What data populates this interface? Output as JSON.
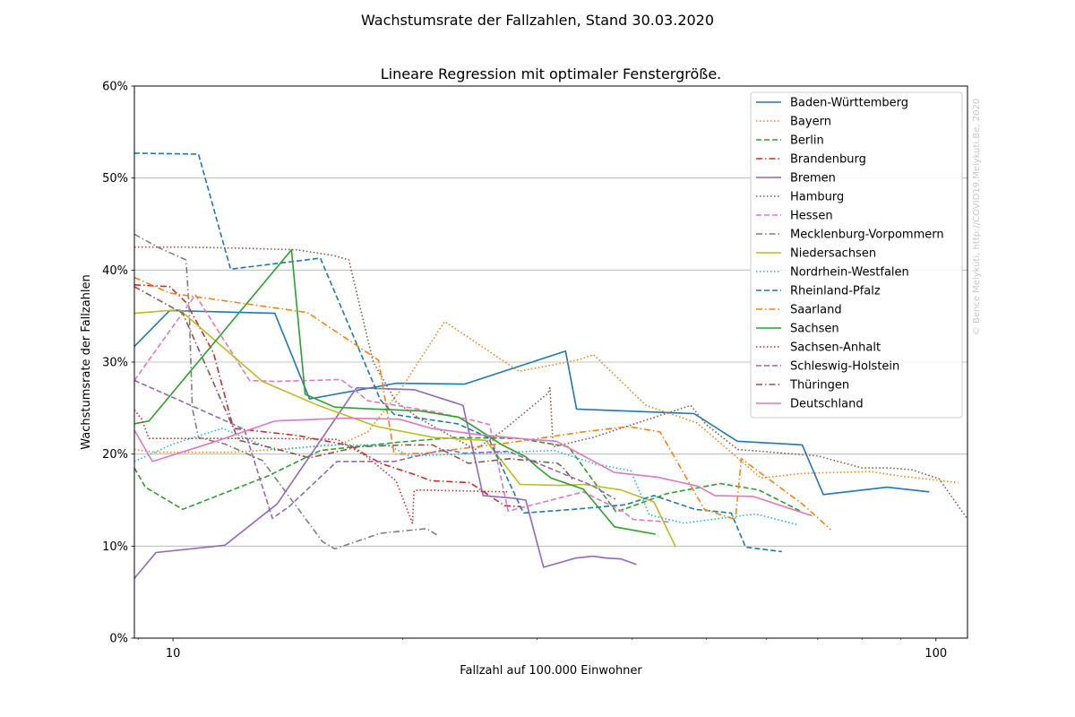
{
  "suptitle": "Wachstumsrate der Fallzahlen, Stand 30.03.2020",
  "watermark": "© Bence Melykúti, http://COVID19.Melykuti.Be, 2020",
  "chart_data": {
    "type": "line",
    "title": "Lineare Regression mit optimaler Fenstergröße.",
    "xlabel": "Fallzahl auf 100.000 Einwohner",
    "ylabel": "Wachstumsrate der Fallzahlen",
    "xscale": "log",
    "xlim": [
      8.9,
      110
    ],
    "ylim": [
      0,
      60
    ],
    "xticks": [
      {
        "value": 10,
        "label": "10"
      },
      {
        "value": 100,
        "label": "100"
      }
    ],
    "yticks": [
      {
        "value": 0,
        "label": "0%"
      },
      {
        "value": 10,
        "label": "10%"
      },
      {
        "value": 20,
        "label": "20%"
      },
      {
        "value": 30,
        "label": "30%"
      },
      {
        "value": 40,
        "label": "40%"
      },
      {
        "value": 50,
        "label": "50%"
      },
      {
        "value": 60,
        "label": "60%"
      }
    ],
    "grid": "y",
    "legend_position": "upper-right",
    "series": [
      {
        "name": "Baden-Württemberg",
        "color": "#1f77b4",
        "style": "solid",
        "x": [
          8.9,
          9.9,
          13.6,
          15.1,
          19.6,
          24.1,
          32.7,
          33.8,
          48.2,
          54.9,
          66.8,
          71.2,
          86.3,
          98.0
        ],
        "y": [
          31.7,
          35.6,
          35.3,
          26.0,
          27.7,
          27.6,
          31.2,
          24.9,
          24.4,
          21.4,
          21.0,
          15.6,
          16.4,
          15.9
        ]
      },
      {
        "name": "Bayern",
        "color": "#ff7f0e",
        "style": "dotted",
        "x": [
          8.9,
          9.5,
          12.0,
          16.5,
          18.0,
          19.8,
          22.7,
          28.4,
          33.8,
          35.6,
          41.7,
          48.6,
          59.0,
          66.8,
          82.2,
          90.0,
          107.0
        ],
        "y": [
          20.5,
          20.2,
          20.2,
          21.0,
          22.4,
          26.8,
          34.4,
          29.0,
          30.2,
          30.8,
          25.3,
          23.4,
          17.4,
          17.9,
          18.1,
          17.6,
          16.9
        ]
      },
      {
        "name": "Berlin",
        "color": "#2ca02c",
        "style": "dashed",
        "x": [
          8.9,
          9.2,
          10.3,
          13.3,
          15.6,
          19.8,
          23.4,
          28.4,
          33.0,
          38.1,
          44.4,
          52.2,
          58.6,
          66.8
        ],
        "y": [
          18.5,
          16.4,
          14.0,
          17.6,
          20.4,
          21.3,
          21.8,
          21.7,
          20.8,
          13.7,
          15.7,
          16.8,
          16.1,
          13.7
        ]
      },
      {
        "name": "Brandenburg",
        "color": "#d62728",
        "style": "dashdot",
        "x": [
          8.9,
          9.9,
          10.4,
          11.3,
          12.0,
          14.6,
          17.1,
          18.7,
          20.7,
          21.8,
          24.5,
          27.2,
          28.5
        ],
        "y": [
          38.4,
          38.2,
          36.5,
          31.0,
          22.8,
          22.0,
          20.9,
          19.0,
          17.8,
          17.1,
          16.9,
          14.4,
          14.3
        ]
      },
      {
        "name": "Bremen",
        "color": "#9467bd",
        "style": "solid",
        "x": [
          8.9,
          9.5,
          11.7,
          13.7,
          17.4,
          20.7,
          24.0,
          25.5,
          28.0,
          29.0,
          30.6,
          33.7,
          35.5,
          37.0,
          38.7,
          40.5
        ],
        "y": [
          6.5,
          9.3,
          10.1,
          14.6,
          27.2,
          27.0,
          25.3,
          15.5,
          15.2,
          15.0,
          7.7,
          8.7,
          8.9,
          8.7,
          8.6,
          8.0
        ]
      },
      {
        "name": "Hamburg",
        "color": "#8c564b",
        "style": "dotted",
        "x": [
          8.9,
          10.3,
          12.0,
          14.5,
          16.2,
          17.0,
          18.3,
          19.6,
          21.0,
          24.9,
          27.0,
          31.0,
          31.2,
          31.5,
          35.5,
          47.7,
          50.0,
          55.0,
          70.0,
          80.0,
          87.0,
          93.0,
          101.0,
          112.0
        ],
        "y": [
          42.5,
          42.5,
          42.4,
          42.2,
          41.6,
          41.1,
          30.0,
          25.7,
          23.9,
          20.5,
          22.5,
          26.6,
          27.2,
          20.8,
          21.8,
          25.3,
          23.2,
          20.5,
          19.8,
          18.5,
          18.5,
          18.3,
          17.3,
          12.0
        ]
      },
      {
        "name": "Hessen",
        "color": "#e377c2",
        "style": "dashed",
        "x": [
          8.9,
          10.7,
          12.6,
          13.6,
          16.6,
          17.3,
          18.0,
          22.0,
          24.9,
          26.0,
          27.5,
          34.5,
          39.0,
          40.1,
          45.0
        ],
        "y": [
          28.0,
          37.3,
          28.0,
          27.9,
          28.1,
          27.0,
          25.8,
          24.6,
          23.6,
          23.2,
          13.8,
          15.9,
          13.7,
          12.9,
          12.6
        ]
      },
      {
        "name": "Mecklenburg-Vorpommern",
        "color": "#7f7f7f",
        "style": "dashdot",
        "x": [
          8.9,
          9.6,
          10.4,
          10.5,
          10.6,
          10.8,
          11.7,
          13.1,
          15.7,
          16.3,
          18.7,
          21.5,
          22.2
        ],
        "y": [
          43.9,
          42.4,
          41.1,
          36.0,
          25.0,
          21.8,
          21.1,
          19.3,
          10.5,
          9.7,
          11.4,
          11.9,
          11.2
        ]
      },
      {
        "name": "Niedersachsen",
        "color": "#bcbd22",
        "style": "solid",
        "x": [
          8.9,
          10.2,
          13.1,
          15.5,
          18.5,
          22.0,
          25.7,
          28.5,
          32.2,
          34.6,
          38.7,
          42.7,
          45.6
        ],
        "y": [
          35.3,
          35.7,
          27.9,
          25.3,
          23.0,
          21.8,
          21.5,
          16.7,
          16.6,
          16.7,
          16.1,
          14.8,
          9.9
        ]
      },
      {
        "name": "Nordrhein-Westfalen",
        "color": "#17becf",
        "style": "dotted",
        "x": [
          8.9,
          10.0,
          11.6,
          13.6,
          15.9,
          19.1,
          20.4,
          25.9,
          31.6,
          35.9,
          39.8,
          42.1,
          46.7,
          58.0,
          66.0
        ],
        "y": [
          19.2,
          21.1,
          22.8,
          20.4,
          21.0,
          21.0,
          19.8,
          20.1,
          20.4,
          18.9,
          18.2,
          13.4,
          12.5,
          13.5,
          12.3
        ]
      },
      {
        "name": "Rheinland-Pfalz",
        "color": "#1f77b4",
        "style": "dashed",
        "x": [
          8.9,
          10.8,
          11.9,
          15.6,
          18.7,
          19.5,
          23.6,
          25.9,
          28.8,
          33.5,
          39.2,
          42.7,
          48.3,
          53.9,
          56.3,
          62.8
        ],
        "y": [
          52.7,
          52.6,
          40.1,
          41.3,
          25.9,
          24.3,
          23.3,
          21.8,
          13.6,
          14.0,
          14.5,
          15.5,
          14.0,
          13.6,
          9.9,
          9.4
        ]
      },
      {
        "name": "Saarland",
        "color": "#ff7f0e",
        "style": "dashdot",
        "x": [
          8.9,
          9.9,
          15.0,
          18.6,
          19.5,
          21.5,
          24.4,
          27.4,
          34.4,
          39.5,
          43.5,
          49.7,
          54.6,
          55.6,
          67.0,
          72.8
        ],
        "y": [
          39.2,
          37.5,
          35.4,
          30.2,
          20.0,
          20.1,
          20.7,
          21.2,
          22.4,
          23.0,
          22.4,
          14.0,
          12.9,
          19.5,
          14.5,
          11.8
        ]
      },
      {
        "name": "Sachsen",
        "color": "#2ca02c",
        "style": "solid",
        "x": [
          8.9,
          9.3,
          14.3,
          14.9,
          16.3,
          18.4,
          21.1,
          23.7,
          25.0,
          27.0,
          29.0,
          30.0,
          31.3,
          34.5,
          37.9,
          42.9
        ],
        "y": [
          23.3,
          23.6,
          42.2,
          26.5,
          25.1,
          24.9,
          24.7,
          24.0,
          22.8,
          21.0,
          19.7,
          18.6,
          17.4,
          16.2,
          12.1,
          11.3
        ]
      },
      {
        "name": "Sachsen-Anhalt",
        "color": "#d62728",
        "style": "dotted",
        "x": [
          8.9,
          9.1,
          9.3,
          10.5,
          13.5,
          16.4,
          17.9,
          19.6,
          20.6,
          20.7,
          21.0,
          27.6
        ],
        "y": [
          24.8,
          23.8,
          21.7,
          21.7,
          21.7,
          21.6,
          19.8,
          17.1,
          12.5,
          16.0,
          16.1,
          15.9
        ]
      },
      {
        "name": "Schleswig-Holstein",
        "color": "#9467bd",
        "style": "dashed",
        "x": [
          8.9,
          10.1,
          12.4,
          13.5,
          14.2,
          16.4,
          19.5,
          22.7,
          24.1,
          27.5,
          35.4,
          38.0
        ],
        "y": [
          28.0,
          26.0,
          22.7,
          13.0,
          14.3,
          19.2,
          19.2,
          20.5,
          20.1,
          20.3,
          16.6,
          15.1
        ]
      },
      {
        "name": "Thüringen",
        "color": "#8c564b",
        "style": "dashdot",
        "x": [
          8.9,
          10.3,
          11.8,
          12.2,
          13.3,
          15.1,
          17.5,
          20.1,
          21.9,
          24.4,
          27.6,
          31.9,
          32.4,
          33.5
        ],
        "y": [
          38.2,
          35.3,
          24.2,
          21.5,
          20.8,
          19.6,
          20.8,
          21.0,
          21.0,
          19.0,
          19.5,
          19.0,
          18.6,
          17.1
        ]
      },
      {
        "name": "Deutschland",
        "color": "#e377c2",
        "style": "solid",
        "x": [
          8.9,
          9.4,
          11.3,
          13.6,
          16.8,
          19.8,
          21.8,
          25.2,
          29.3,
          31.8,
          37.9,
          43.1,
          46.5,
          48.8,
          51.3,
          57.6,
          68.8
        ],
        "y": [
          22.6,
          19.2,
          21.3,
          23.6,
          23.9,
          23.8,
          22.8,
          22.1,
          21.6,
          21.4,
          18.0,
          17.5,
          16.9,
          16.5,
          15.5,
          15.4,
          13.3
        ]
      }
    ]
  }
}
